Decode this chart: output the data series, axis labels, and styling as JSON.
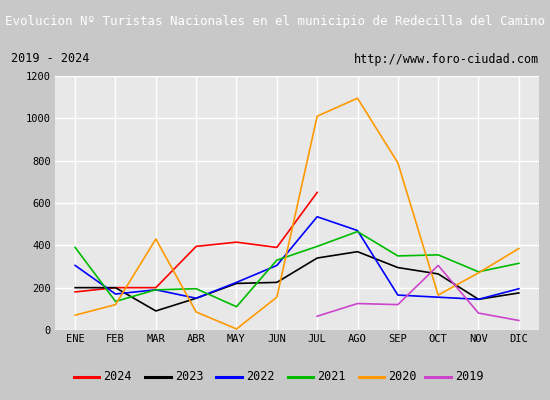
{
  "title": "Evolucion Nº Turistas Nacionales en el municipio de Redecilla del Camino",
  "subtitle_left": "2019 - 2024",
  "subtitle_right": "http://www.foro-ciudad.com",
  "months": [
    "ENE",
    "FEB",
    "MAR",
    "ABR",
    "MAY",
    "JUN",
    "JUL",
    "AGO",
    "SEP",
    "OCT",
    "NOV",
    "DIC"
  ],
  "ylim": [
    0,
    1200
  ],
  "yticks": [
    0,
    200,
    400,
    600,
    800,
    1000,
    1200
  ],
  "series": {
    "2024": {
      "color": "#ff0000",
      "values": [
        180,
        200,
        200,
        395,
        415,
        390,
        650,
        null,
        null,
        null,
        null,
        null
      ]
    },
    "2023": {
      "color": "#000000",
      "values": [
        200,
        200,
        90,
        150,
        220,
        225,
        340,
        370,
        295,
        265,
        145,
        175
      ]
    },
    "2022": {
      "color": "#0000ff",
      "values": [
        305,
        170,
        190,
        150,
        225,
        305,
        535,
        470,
        165,
        155,
        145,
        195
      ]
    },
    "2021": {
      "color": "#00bb00",
      "values": [
        390,
        135,
        190,
        195,
        110,
        330,
        395,
        465,
        350,
        355,
        275,
        315
      ]
    },
    "2020": {
      "color": "#ff9900",
      "values": [
        70,
        120,
        430,
        85,
        5,
        155,
        1010,
        1095,
        790,
        165,
        270,
        385
      ]
    },
    "2019": {
      "color": "#cc44cc",
      "values": [
        null,
        null,
        null,
        null,
        null,
        null,
        65,
        125,
        120,
        305,
        80,
        45
      ]
    }
  },
  "title_bg_color": "#4472c4",
  "title_text_color": "#ffffff",
  "plot_bg_color": "#e8e8e8",
  "grid_color": "#ffffff",
  "fig_bg_color": "#c8c8c8",
  "subtitle_bg": "#ffffff",
  "legend_bg": "#ffffff"
}
